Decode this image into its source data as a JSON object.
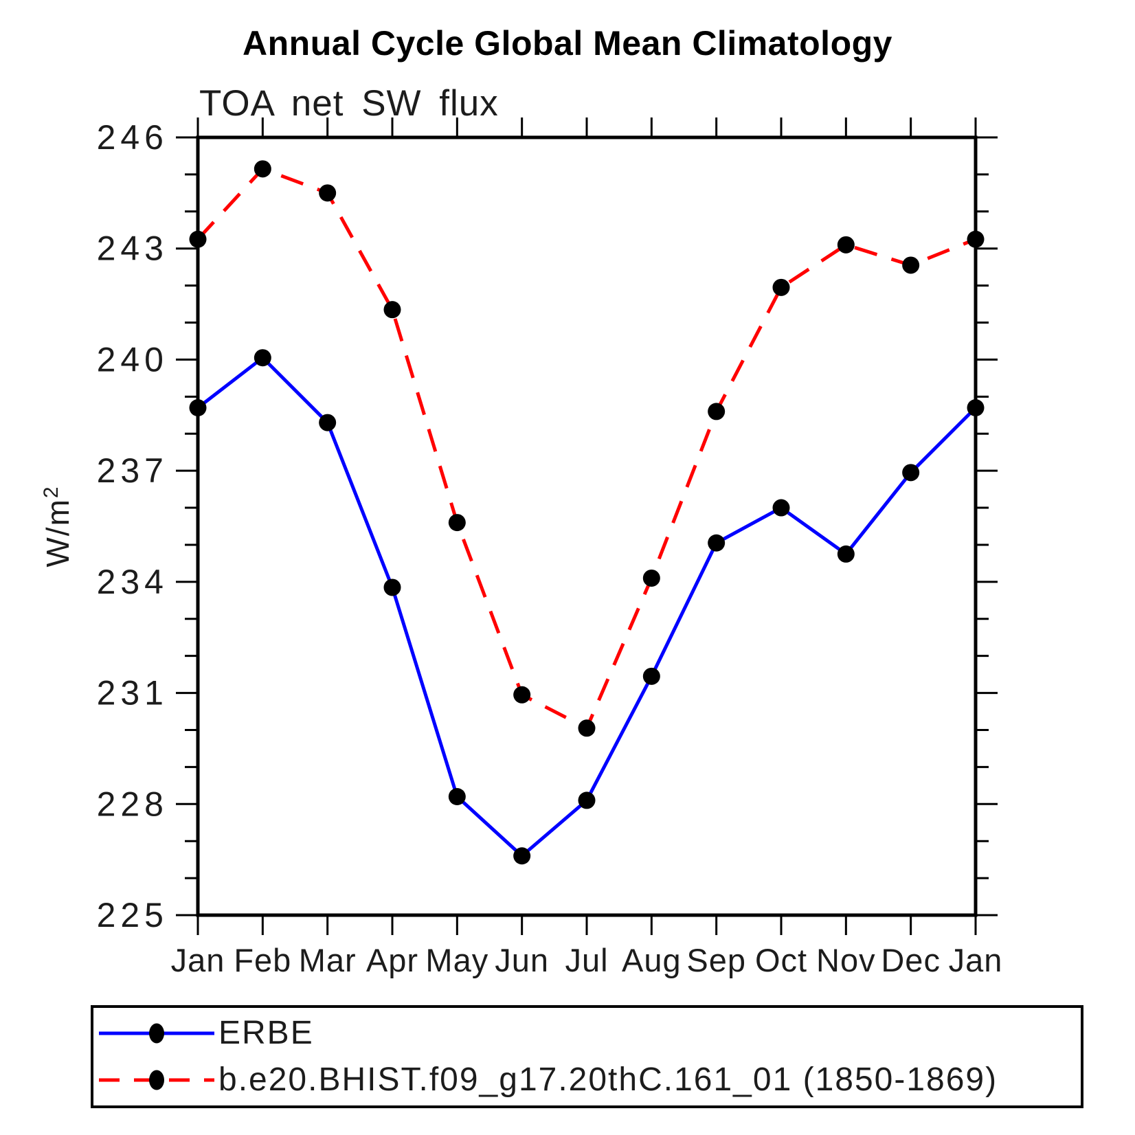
{
  "title": "Annual Cycle Global Mean Climatology",
  "subtitle": "TOA net SW flux",
  "legend": {
    "items": [
      {
        "label": "ERBE",
        "color": "#0000ff",
        "style": "solid"
      },
      {
        "label": "b.e20.BHIST.f09_g17.20thC.161_01 (1850-1869)",
        "color": "#ff0000",
        "style": "dashed"
      }
    ]
  },
  "chart_data": {
    "type": "line",
    "title": "Annual Cycle Global Mean Climatology",
    "subtitle": "TOA net SW flux",
    "xlabel": "",
    "ylabel": "W/m2",
    "ylabel_base": "W/m",
    "ylabel_sup": "2",
    "x_categories": [
      "Jan",
      "Feb",
      "Mar",
      "Apr",
      "May",
      "Jun",
      "Jul",
      "Aug",
      "Sep",
      "Oct",
      "Nov",
      "Dec",
      "Jan"
    ],
    "ylim": [
      225,
      246
    ],
    "y_major_ticks": [
      246,
      243,
      240,
      237,
      234,
      231,
      228,
      225
    ],
    "y_minor_step": 1,
    "grid": false,
    "legend_position": "bottom-left-box",
    "marker_color": "#000000",
    "series": [
      {
        "name": "ERBE",
        "color": "#0000ff",
        "dash": "solid",
        "marker": "filled-circle",
        "values": [
          238.7,
          240.05,
          238.3,
          233.85,
          228.2,
          226.6,
          228.1,
          231.45,
          235.05,
          236.0,
          234.75,
          236.95,
          238.7
        ]
      },
      {
        "name": "b.e20.BHIST.f09_g17.20thC.161_01 (1850-1869)",
        "color": "#ff0000",
        "dash": "dashed",
        "marker": "filled-circle",
        "values": [
          243.25,
          245.15,
          244.5,
          241.35,
          235.6,
          230.95,
          230.05,
          234.1,
          238.6,
          241.95,
          243.1,
          242.55,
          243.25
        ]
      }
    ]
  }
}
